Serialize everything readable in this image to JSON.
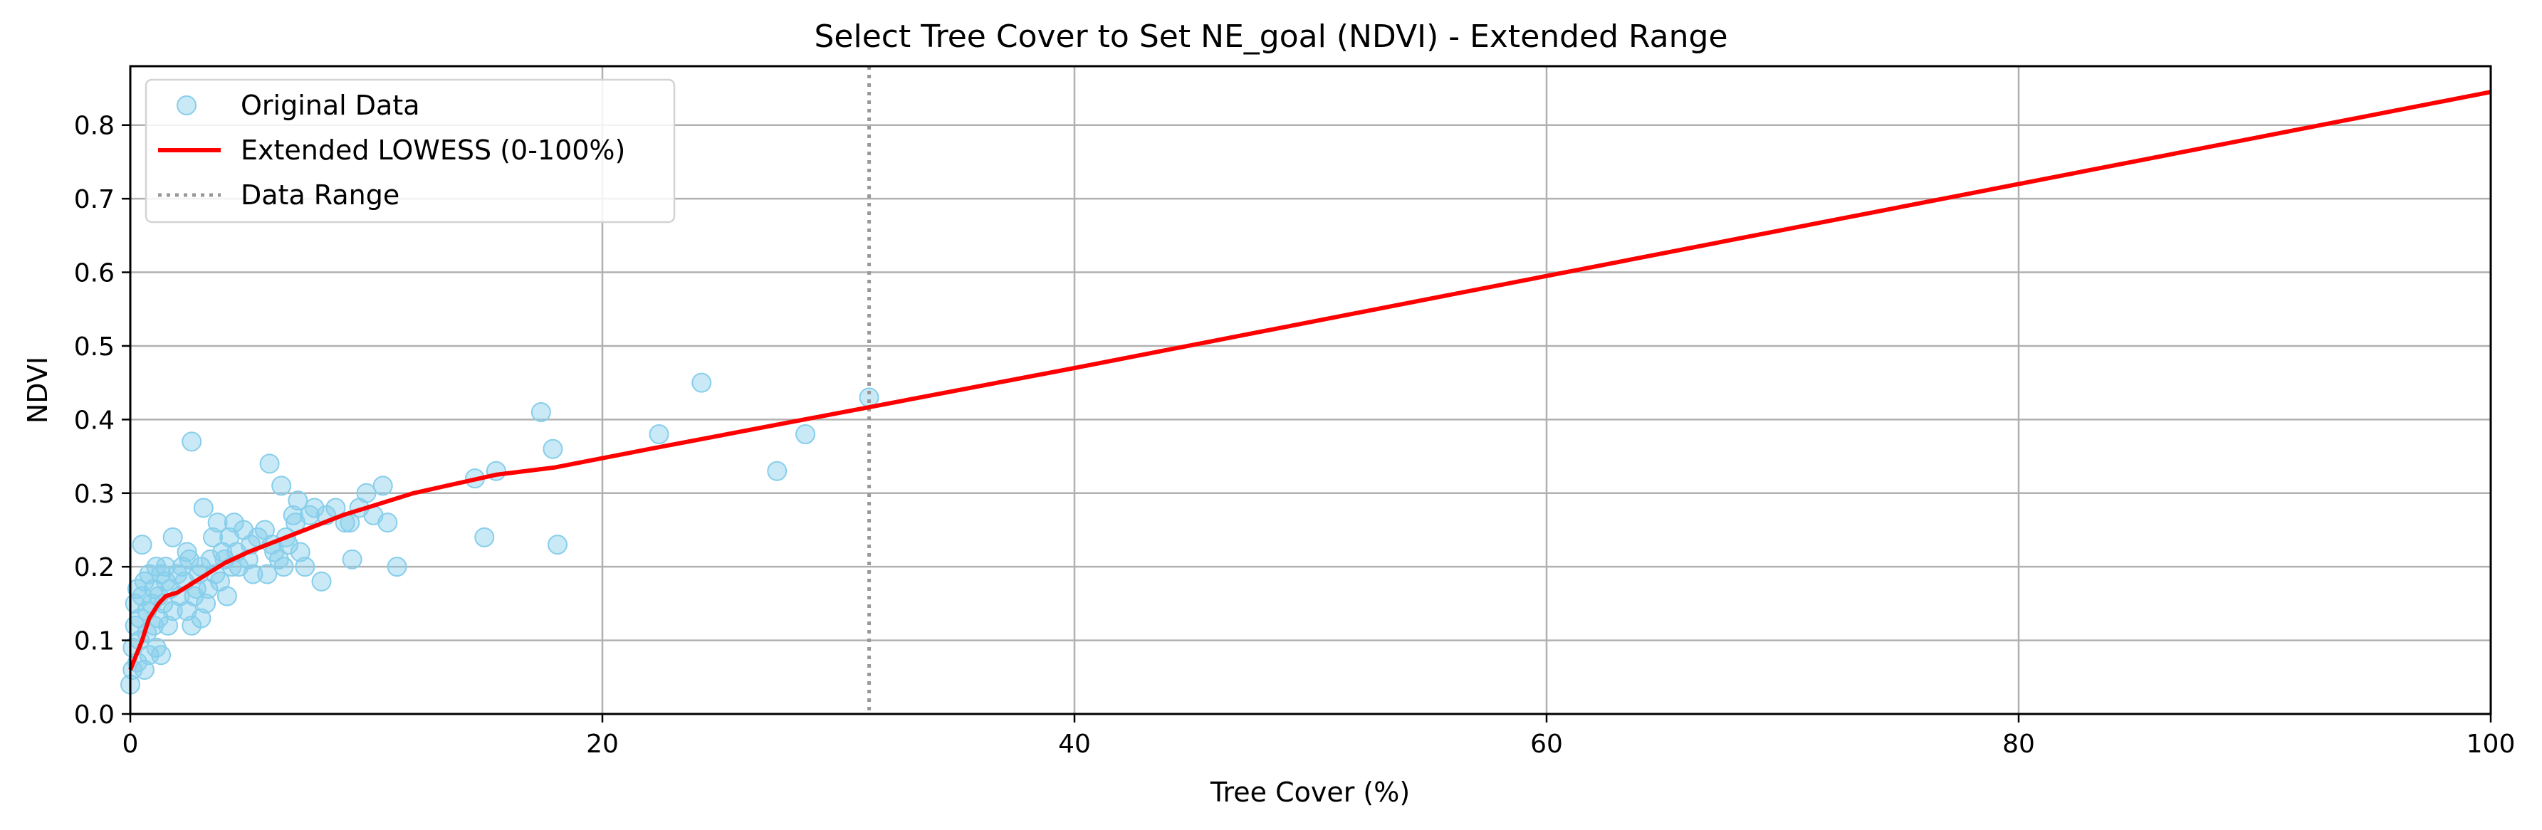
{
  "chart_data": {
    "type": "scatter",
    "title": "Select Tree Cover to Set NE_goal (NDVI) - Extended Range",
    "xlabel": "Tree Cover (%)",
    "ylabel": "NDVI",
    "xlim": [
      0,
      100
    ],
    "ylim": [
      0,
      0.88
    ],
    "x_ticks": [
      "0",
      "20",
      "40",
      "60",
      "80",
      "100"
    ],
    "y_ticks": [
      "0.0",
      "0.1",
      "0.2",
      "0.3",
      "0.4",
      "0.5",
      "0.6",
      "0.7",
      "0.8"
    ],
    "x_tick_values": [
      0,
      20,
      40,
      60,
      80,
      100
    ],
    "y_tick_values": [
      0,
      0.1,
      0.2,
      0.3,
      0.4,
      0.5,
      0.6,
      0.7,
      0.8
    ],
    "grid": true,
    "legend_position": "top-left",
    "colors": {
      "scatter": "#87ceeb",
      "lowess": "#ff0000",
      "data_range": "#999999",
      "grid": "#b0b0b0"
    },
    "series": [
      {
        "name": "Original Data",
        "type": "scatter",
        "points": [
          [
            0.0,
            0.04
          ],
          [
            0.1,
            0.06
          ],
          [
            0.1,
            0.09
          ],
          [
            0.2,
            0.12
          ],
          [
            0.2,
            0.15
          ],
          [
            0.3,
            0.07
          ],
          [
            0.3,
            0.17
          ],
          [
            0.4,
            0.1
          ],
          [
            0.4,
            0.13
          ],
          [
            0.5,
            0.23
          ],
          [
            0.5,
            0.16
          ],
          [
            0.6,
            0.18
          ],
          [
            0.6,
            0.06
          ],
          [
            0.7,
            0.11
          ],
          [
            0.7,
            0.14
          ],
          [
            0.8,
            0.19
          ],
          [
            0.8,
            0.08
          ],
          [
            0.9,
            0.15
          ],
          [
            1.0,
            0.12
          ],
          [
            1.0,
            0.17
          ],
          [
            1.1,
            0.2
          ],
          [
            1.1,
            0.09
          ],
          [
            1.2,
            0.16
          ],
          [
            1.2,
            0.13
          ],
          [
            1.3,
            0.08
          ],
          [
            1.3,
            0.19
          ],
          [
            1.4,
            0.15
          ],
          [
            1.5,
            0.18
          ],
          [
            1.5,
            0.2
          ],
          [
            1.6,
            0.12
          ],
          [
            1.7,
            0.17
          ],
          [
            1.8,
            0.14
          ],
          [
            1.8,
            0.24
          ],
          [
            2.0,
            0.19
          ],
          [
            2.1,
            0.16
          ],
          [
            2.2,
            0.2
          ],
          [
            2.3,
            0.18
          ],
          [
            2.4,
            0.22
          ],
          [
            2.4,
            0.14
          ],
          [
            2.5,
            0.21
          ],
          [
            2.6,
            0.12
          ],
          [
            2.6,
            0.37
          ],
          [
            2.7,
            0.16
          ],
          [
            2.8,
            0.17
          ],
          [
            2.9,
            0.19
          ],
          [
            3.0,
            0.13
          ],
          [
            3.0,
            0.2
          ],
          [
            3.1,
            0.28
          ],
          [
            3.2,
            0.15
          ],
          [
            3.3,
            0.17
          ],
          [
            3.4,
            0.21
          ],
          [
            3.5,
            0.24
          ],
          [
            3.6,
            0.19
          ],
          [
            3.7,
            0.26
          ],
          [
            3.8,
            0.18
          ],
          [
            3.9,
            0.22
          ],
          [
            4.0,
            0.21
          ],
          [
            4.1,
            0.16
          ],
          [
            4.2,
            0.24
          ],
          [
            4.3,
            0.2
          ],
          [
            4.4,
            0.26
          ],
          [
            4.5,
            0.22
          ],
          [
            4.6,
            0.2
          ],
          [
            4.8,
            0.25
          ],
          [
            5.0,
            0.21
          ],
          [
            5.1,
            0.23
          ],
          [
            5.2,
            0.19
          ],
          [
            5.4,
            0.24
          ],
          [
            5.7,
            0.25
          ],
          [
            5.8,
            0.19
          ],
          [
            5.9,
            0.34
          ],
          [
            6.0,
            0.23
          ],
          [
            6.1,
            0.22
          ],
          [
            6.3,
            0.21
          ],
          [
            6.4,
            0.31
          ],
          [
            6.5,
            0.2
          ],
          [
            6.6,
            0.24
          ],
          [
            6.7,
            0.23
          ],
          [
            6.9,
            0.27
          ],
          [
            7.0,
            0.26
          ],
          [
            7.1,
            0.29
          ],
          [
            7.2,
            0.22
          ],
          [
            7.4,
            0.2
          ],
          [
            7.6,
            0.27
          ],
          [
            7.8,
            0.28
          ],
          [
            8.1,
            0.18
          ],
          [
            8.3,
            0.27
          ],
          [
            8.7,
            0.28
          ],
          [
            9.1,
            0.26
          ],
          [
            9.3,
            0.26
          ],
          [
            9.4,
            0.21
          ],
          [
            9.7,
            0.28
          ],
          [
            10.0,
            0.3
          ],
          [
            10.3,
            0.27
          ],
          [
            10.7,
            0.31
          ],
          [
            10.9,
            0.26
          ],
          [
            11.3,
            0.2
          ],
          [
            14.6,
            0.32
          ],
          [
            15.0,
            0.24
          ],
          [
            15.5,
            0.33
          ],
          [
            17.4,
            0.41
          ],
          [
            17.9,
            0.36
          ],
          [
            18.1,
            0.23
          ],
          [
            22.4,
            0.38
          ],
          [
            24.2,
            0.45
          ],
          [
            27.4,
            0.33
          ],
          [
            28.6,
            0.38
          ],
          [
            31.3,
            0.43
          ]
        ]
      },
      {
        "name": "Extended LOWESS (0-100%)",
        "type": "line",
        "points": [
          [
            0,
            0.06
          ],
          [
            0.5,
            0.1
          ],
          [
            0.8,
            0.13
          ],
          [
            1.0,
            0.14
          ],
          [
            1.2,
            0.15
          ],
          [
            1.5,
            0.16
          ],
          [
            2.0,
            0.165
          ],
          [
            3.0,
            0.185
          ],
          [
            4.0,
            0.205
          ],
          [
            5.0,
            0.22
          ],
          [
            7.0,
            0.245
          ],
          [
            9.0,
            0.27
          ],
          [
            12.0,
            0.3
          ],
          [
            15.5,
            0.325
          ],
          [
            18.0,
            0.335
          ],
          [
            22.0,
            0.36
          ],
          [
            31.0,
            0.415
          ],
          [
            40.0,
            0.47
          ],
          [
            60.0,
            0.595
          ],
          [
            80.0,
            0.72
          ],
          [
            100.0,
            0.845
          ]
        ]
      },
      {
        "name": "Data Range",
        "type": "vline",
        "x": 31.3
      }
    ]
  }
}
